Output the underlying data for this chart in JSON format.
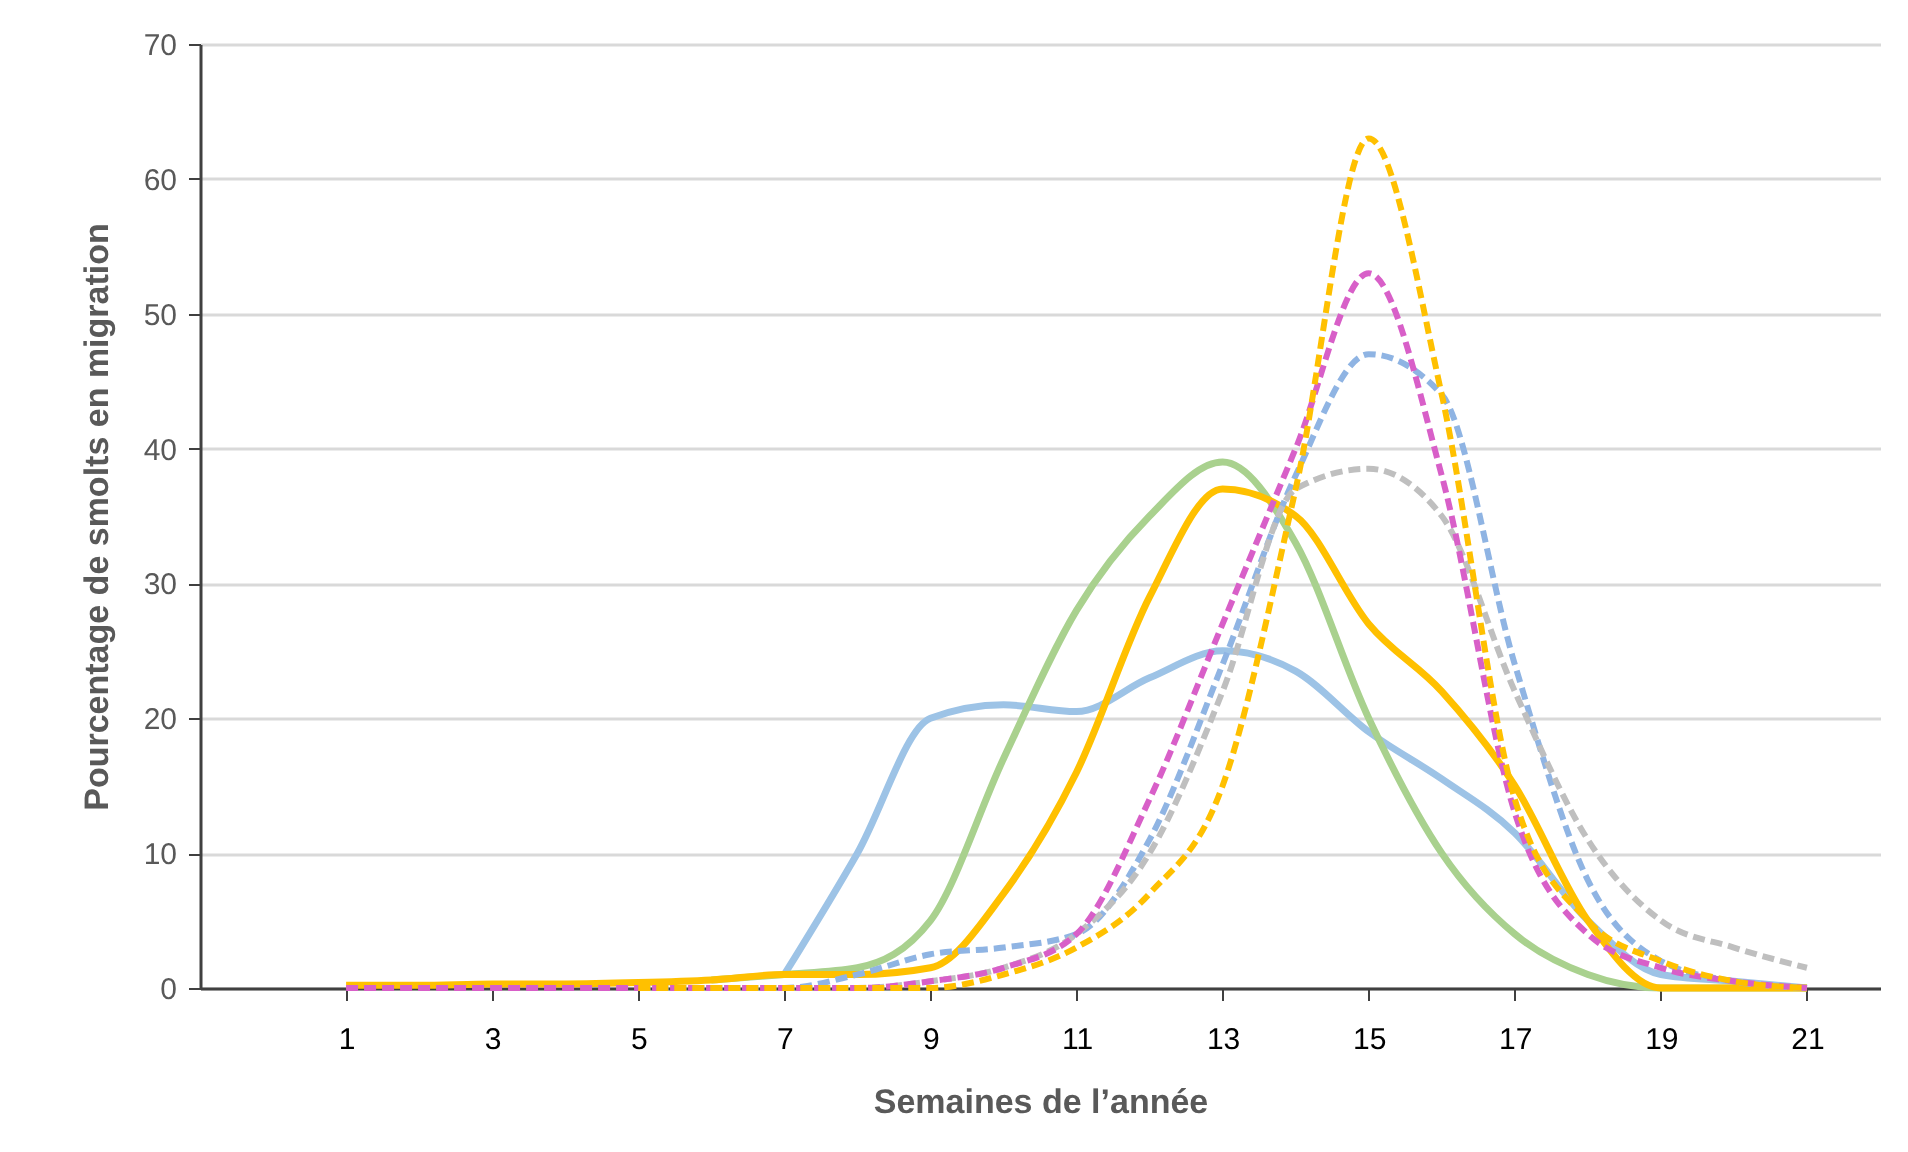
{
  "chart_data": {
    "type": "line",
    "xlabel": "Semaines de l’année",
    "ylabel": "Pourcentage de smolts en migration",
    "x": [
      1,
      2,
      3,
      4,
      5,
      6,
      7,
      8,
      9,
      10,
      11,
      12,
      13,
      14,
      15,
      16,
      17,
      18,
      19,
      20,
      21
    ],
    "xlim": [
      -1,
      22
    ],
    "xticks": [
      1,
      3,
      5,
      7,
      9,
      11,
      13,
      15,
      17,
      19,
      21
    ],
    "ylim": [
      0,
      70
    ],
    "yticks": [
      0,
      10,
      20,
      30,
      40,
      50,
      60,
      70
    ],
    "grid": "y",
    "series": [
      {
        "color": "#9dc3e6",
        "line_style": "solid",
        "values": [
          null,
          null,
          null,
          null,
          null,
          null,
          1,
          10,
          20,
          21,
          20.5,
          23,
          25,
          23.5,
          19,
          15.5,
          11.5,
          5,
          1,
          0.5,
          0
        ]
      },
      {
        "color": "#a9d18e",
        "line_style": "solid",
        "values": [
          null,
          null,
          null,
          null,
          null,
          0.6,
          1,
          1.5,
          5,
          17,
          28,
          35,
          39,
          33,
          20,
          10,
          4,
          1,
          0,
          0,
          0
        ]
      },
      {
        "color": "#ffc000",
        "line_style": "solid",
        "values": [
          0.2,
          0.2,
          0.3,
          0.3,
          0.4,
          0.6,
          1,
          1,
          1.5,
          7,
          16,
          29,
          37,
          35,
          27,
          22,
          15,
          5,
          0,
          0,
          0
        ]
      },
      {
        "color": "#8fb4e3",
        "line_style": "dashed",
        "values": [
          null,
          null,
          null,
          null,
          0,
          0,
          0,
          1,
          2.5,
          3,
          4,
          11,
          24,
          38,
          47,
          44,
          24,
          8,
          2,
          0.5,
          0
        ]
      },
      {
        "color": "#bfbfbf",
        "line_style": "dashed",
        "values": [
          null,
          null,
          null,
          null,
          0,
          0,
          0,
          0,
          0.5,
          1.5,
          4,
          10,
          22,
          37,
          38.5,
          35,
          22,
          11,
          5,
          3,
          1.5
        ]
      },
      {
        "color": "#d85fc8",
        "line_style": "dashed",
        "values": [
          0,
          0,
          0,
          0,
          0,
          0,
          0,
          0,
          0.5,
          1.5,
          4,
          14,
          27,
          40,
          53,
          38,
          13,
          4,
          1.5,
          0.5,
          0
        ]
      },
      {
        "color": "#ffc000",
        "line_style": "dashed",
        "values": [
          null,
          null,
          null,
          null,
          0,
          0,
          0,
          0,
          0,
          1,
          3,
          7,
          15,
          37,
          63,
          44,
          14,
          5,
          2,
          0.5,
          0
        ]
      }
    ]
  }
}
